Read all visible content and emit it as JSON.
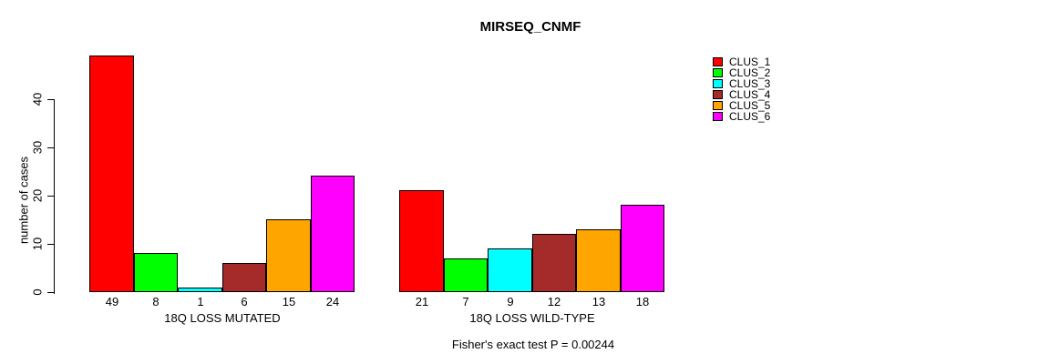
{
  "chart_data": {
    "type": "bar",
    "title": "MIRSEQ_CNMF",
    "ylabel": "number of cases",
    "xlabel": "",
    "ylim": [
      0,
      40
    ],
    "yticks": [
      0,
      10,
      20,
      30,
      40
    ],
    "grid": false,
    "legend_position": "right",
    "categories": [
      "18Q LOSS MUTATED",
      "18Q LOSS WILD-TYPE"
    ],
    "series": [
      {
        "name": "CLUS_1",
        "color": "#FF0000",
        "values": [
          49,
          21
        ]
      },
      {
        "name": "CLUS_2",
        "color": "#00FF00",
        "values": [
          8,
          7
        ]
      },
      {
        "name": "CLUS_3",
        "color": "#00FFFF",
        "values": [
          1,
          9
        ]
      },
      {
        "name": "CLUS_4",
        "color": "#A52A2A",
        "values": [
          6,
          12
        ]
      },
      {
        "name": "CLUS_5",
        "color": "#FFA500",
        "values": [
          15,
          13
        ]
      },
      {
        "name": "CLUS_6",
        "color": "#FF00FF",
        "values": [
          24,
          18
        ]
      }
    ],
    "bar_value_labels_shown": true,
    "annotation": "Fisher's exact test P = 0.00244",
    "text_color": "#000000",
    "background_color": "#FFFFFF"
  }
}
